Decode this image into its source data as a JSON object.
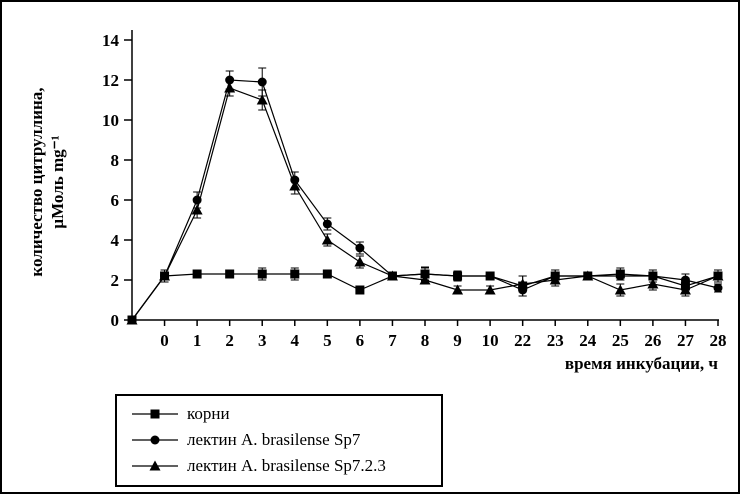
{
  "chart_data": {
    "type": "line",
    "title": "",
    "xlabel": "время инкубации, ч",
    "ylabel_line1": "количество цитруллина,",
    "ylabel_line2": "µМоль mg⁻¹",
    "categories": [
      "",
      "0",
      "1",
      "2",
      "3",
      "4",
      "5",
      "6",
      "7",
      "8",
      "9",
      "10",
      "22",
      "23",
      "24",
      "25",
      "26",
      "27",
      "28"
    ],
    "ylim": [
      0,
      14
    ],
    "yticks": [
      0,
      2,
      4,
      6,
      8,
      10,
      12,
      14
    ],
    "grid": false,
    "legend_position": "bottom-left",
    "series": [
      {
        "name": "корни",
        "marker": "square",
        "color": "#000000",
        "values": [
          0,
          2.2,
          2.3,
          2.3,
          2.3,
          2.3,
          2.3,
          1.5,
          2.2,
          2.3,
          2.2,
          2.2,
          1.7,
          2.2,
          2.2,
          2.3,
          2.2,
          1.7,
          2.2
        ],
        "errors": [
          0,
          0.3,
          0.2,
          0.2,
          0.3,
          0.3,
          0.2,
          0.2,
          0.2,
          0.3,
          0.25,
          0.2,
          0.5,
          0.3,
          0.2,
          0.3,
          0.3,
          0.4,
          0.3
        ]
      },
      {
        "name": "лектин A. brasilense Sp7",
        "marker": "circle",
        "color": "#000000",
        "values": [
          0,
          2.2,
          6.0,
          12.0,
          11.9,
          7.0,
          4.8,
          3.6,
          2.2,
          2.3,
          2.2,
          2.2,
          1.5,
          2.2,
          2.2,
          2.2,
          2.2,
          2.0,
          1.6
        ],
        "errors": [
          0,
          0.2,
          0.4,
          0.45,
          0.7,
          0.4,
          0.3,
          0.3,
          0.2,
          0.35,
          0.2,
          0.2,
          0.3,
          0.3,
          0.2,
          0.2,
          0.2,
          0.3,
          0.2
        ]
      },
      {
        "name": "лектин A. brasilense Sp7.2.3",
        "marker": "triangle",
        "color": "#000000",
        "values": [
          0,
          2.2,
          5.5,
          11.6,
          11.0,
          6.7,
          4.0,
          2.9,
          2.2,
          2.0,
          1.5,
          1.5,
          1.8,
          2.0,
          2.2,
          1.5,
          1.8,
          1.5,
          2.2
        ],
        "errors": [
          0,
          0.2,
          0.4,
          0.4,
          0.5,
          0.4,
          0.3,
          0.3,
          0.2,
          0.2,
          0.2,
          0.2,
          0.4,
          0.3,
          0.2,
          0.3,
          0.3,
          0.3,
          0.2
        ]
      }
    ]
  }
}
